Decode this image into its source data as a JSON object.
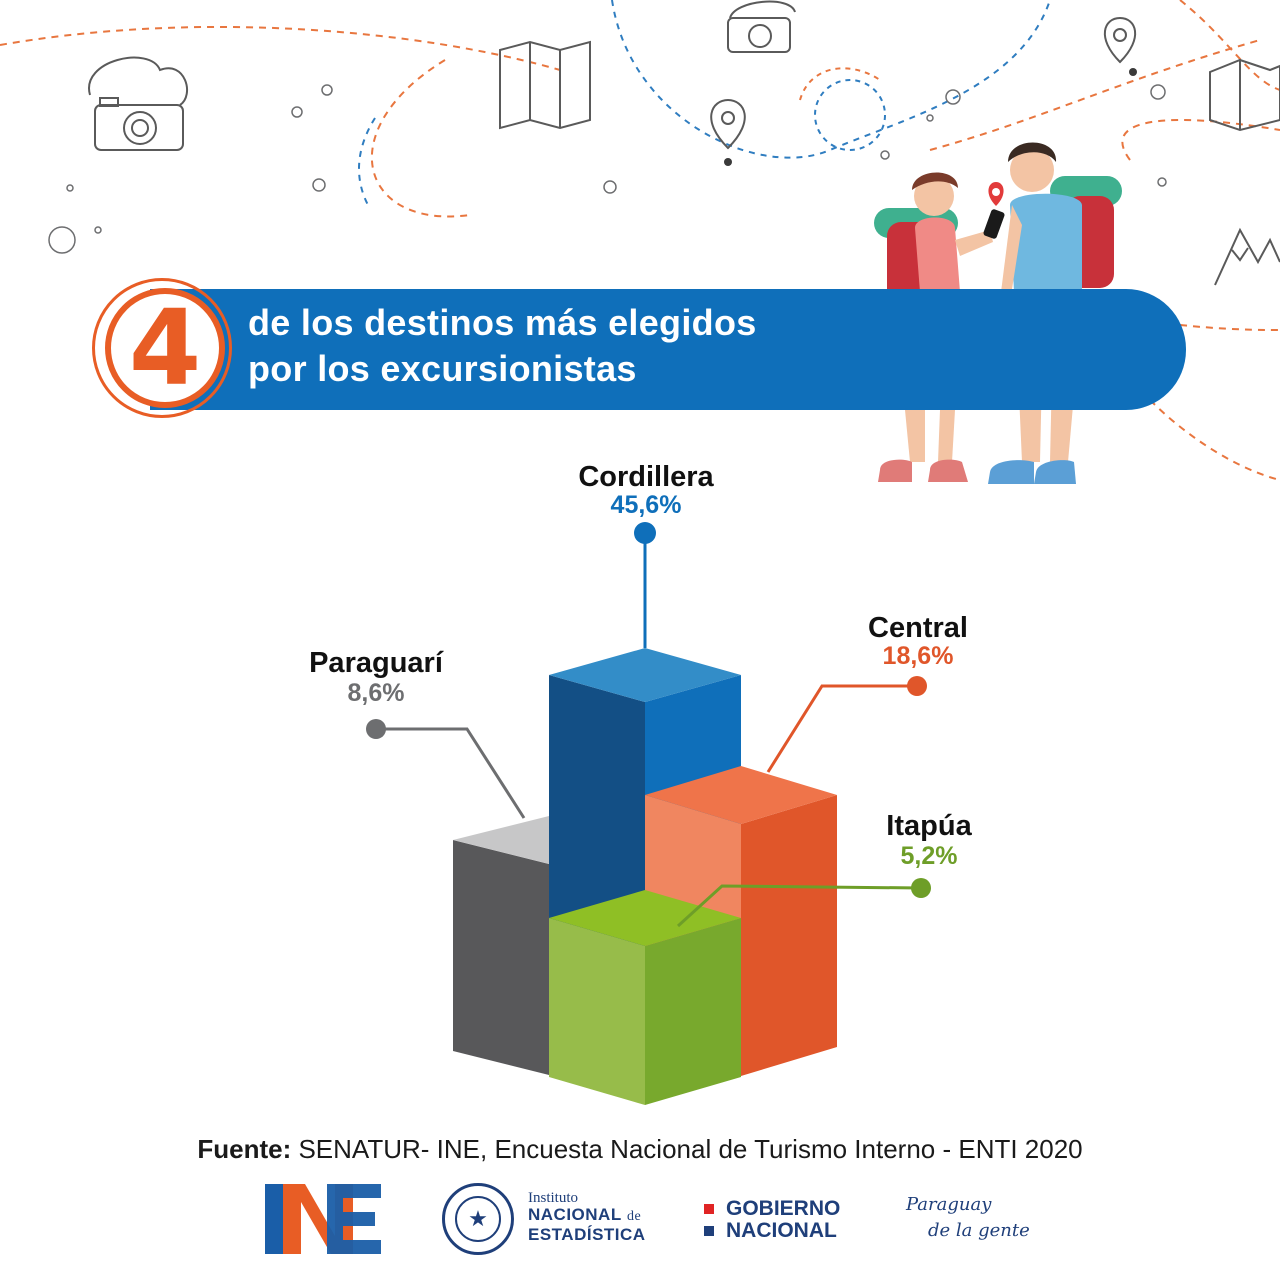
{
  "header": {
    "badge_number": "4",
    "title_line1": "de los destinos más elegidos",
    "title_line2": "por los excursionistas"
  },
  "chart_data": {
    "type": "bar",
    "categories": [
      "Cordillera",
      "Central",
      "Paraguarí",
      "Itapúa"
    ],
    "values": [
      45.6,
      18.6,
      8.6,
      5.2
    ],
    "value_labels": [
      "45,6%",
      "18,6%",
      "8,6%",
      "5,2%"
    ],
    "unit": "%",
    "colors": [
      "#0f6fba",
      "#e85d25",
      "#6d6e70",
      "#7ab02e"
    ]
  },
  "footer": {
    "source_label": "Fuente:",
    "source_text": "SENATUR- INE, Encuesta Nacional de Turismo Interno - ENTI 2020",
    "logos": {
      "ine_instituto": "Instituto",
      "ine_nacional": "NACIONAL",
      "ine_de": "de",
      "ine_estadistica": "ESTADÍSTICA",
      "gobierno_line1": "GOBIERNO",
      "gobierno_line2": "NACIONAL",
      "pdlg_line1": "Paraguay",
      "pdlg_line2": "de la gente"
    }
  }
}
